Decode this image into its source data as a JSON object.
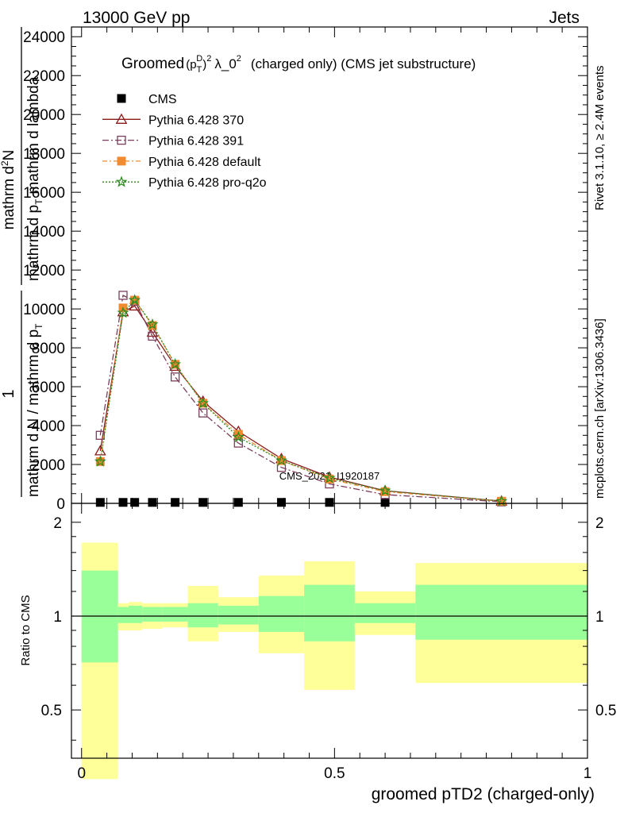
{
  "header": {
    "left": "13000 GeV pp",
    "right": "Jets"
  },
  "side_text": {
    "rivet": "Rivet 3.1.10, ≥ 2.4M events",
    "mcplots": "mcplots.cern.ch [arXiv:1306.3436]"
  },
  "watermark": "CMS_2021_I1920187",
  "chart_data": [
    {
      "type": "line",
      "title": {
        "prefix": "Groomed",
        "symbol": "(p",
        "sub": "T",
        "sup": "D",
        "close": ")",
        "exp": "2",
        "rest": "λ_0",
        "rest_exp": "2",
        "suffix": "(charged only) (CMS jet substructure)"
      },
      "ylabel": "1 / mathrm d N / mathrm d p_T mathrm d^2N / mathrm d p_T mathrm d lambda",
      "ylabel_parts": {
        "num": "1",
        "den": "mathrm d N / mathrm d p",
        "den_sub": "T",
        "num2": "mathrm d",
        "num2_sup": "2",
        "num2_rest": "N",
        "den2": "mathrm d p",
        "den2_sub": "T",
        "den2_rest": "mathrm d lambda"
      },
      "ylim": [
        0,
        24500
      ],
      "yticks": [
        0,
        2000,
        4000,
        6000,
        8000,
        10000,
        12000,
        14000,
        16000,
        18000,
        20000,
        22000,
        24000
      ],
      "ytick_labels": [
        "0",
        "2000",
        "4000",
        "6000",
        "8000",
        "10000",
        "12000",
        "14000",
        "16000",
        "18000",
        "20000",
        "22000",
        "24000"
      ],
      "xlim": [
        -0.02,
        1.0
      ],
      "legend": "top-left",
      "series": [
        {
          "name": "CMS",
          "color": "#000000",
          "marker": "square-filled",
          "dash": "",
          "x": [
            0.037,
            0.082,
            0.105,
            0.14,
            0.185,
            0.24,
            0.31,
            0.395,
            0.49,
            0.6
          ],
          "y": [
            50,
            50,
            50,
            50,
            50,
            50,
            50,
            50,
            50,
            50
          ]
        },
        {
          "name": "Pythia 6.428 370",
          "color": "#8b1a1a",
          "marker": "triangle-open",
          "dash": "",
          "x": [
            0.037,
            0.082,
            0.105,
            0.14,
            0.185,
            0.24,
            0.31,
            0.395,
            0.49,
            0.6,
            0.83
          ],
          "y": [
            2700,
            9850,
            10150,
            8800,
            7050,
            5250,
            3700,
            2300,
            1350,
            650,
            120
          ]
        },
        {
          "name": "Pythia 6.428 391",
          "color": "#7a3e5c",
          "marker": "square-open",
          "dash": "8,3,2,3",
          "x": [
            0.037,
            0.082,
            0.105,
            0.14,
            0.185,
            0.24,
            0.31,
            0.395,
            0.49,
            0.6,
            0.83
          ],
          "y": [
            3500,
            10700,
            10400,
            8600,
            6500,
            4650,
            3100,
            1850,
            1000,
            450,
            80
          ]
        },
        {
          "name": "Pythia 6.428 default",
          "color": "#f28b30",
          "marker": "square-filled",
          "dash": "6,3,2,3",
          "x": [
            0.037,
            0.082,
            0.105,
            0.14,
            0.185,
            0.24,
            0.31,
            0.395,
            0.49,
            0.6,
            0.83
          ],
          "y": [
            2150,
            10050,
            10450,
            9150,
            7150,
            5150,
            3550,
            2200,
            1250,
            600,
            110
          ]
        },
        {
          "name": "Pythia 6.428 pro-q2o",
          "color": "#2e8b1e",
          "marker": "star-open",
          "dash": "2,2",
          "x": [
            0.037,
            0.082,
            0.105,
            0.14,
            0.185,
            0.24,
            0.31,
            0.395,
            0.49,
            0.6,
            0.83
          ],
          "y": [
            2150,
            9800,
            10450,
            9200,
            7150,
            5150,
            3400,
            2200,
            1300,
            650,
            110
          ]
        }
      ]
    },
    {
      "type": "area",
      "ylabel": "Ratio to CMS",
      "xlabel": "groomed pTD2 (charged-only)",
      "xlim": [
        -0.02,
        1.0
      ],
      "xticks": [
        0,
        0.5,
        1
      ],
      "xtick_labels": [
        "0",
        "0.5",
        "1"
      ],
      "ylim": [
        0.35,
        2.3
      ],
      "yscale": "log",
      "yticks": [
        0.5,
        1,
        2
      ],
      "ytick_labels": [
        "0.5",
        "1",
        "2"
      ],
      "band_colors": {
        "inner": "#99ff99",
        "outer": "#ffff99"
      },
      "reference_line": 1,
      "bins": [
        {
          "x0": 0.0,
          "x1": 0.072,
          "inner": [
            0.71,
            1.4
          ],
          "outer": [
            0.3,
            1.72
          ]
        },
        {
          "x0": 0.072,
          "x1": 0.093,
          "inner": [
            0.95,
            1.07
          ],
          "outer": [
            0.9,
            1.1
          ]
        },
        {
          "x0": 0.093,
          "x1": 0.12,
          "inner": [
            0.95,
            1.08
          ],
          "outer": [
            0.9,
            1.11
          ]
        },
        {
          "x0": 0.12,
          "x1": 0.16,
          "inner": [
            0.96,
            1.07
          ],
          "outer": [
            0.91,
            1.1
          ]
        },
        {
          "x0": 0.16,
          "x1": 0.21,
          "inner": [
            0.96,
            1.07
          ],
          "outer": [
            0.92,
            1.1
          ]
        },
        {
          "x0": 0.21,
          "x1": 0.27,
          "inner": [
            0.92,
            1.1
          ],
          "outer": [
            0.83,
            1.25
          ]
        },
        {
          "x0": 0.27,
          "x1": 0.35,
          "inner": [
            0.94,
            1.08
          ],
          "outer": [
            0.89,
            1.15
          ]
        },
        {
          "x0": 0.35,
          "x1": 0.44,
          "inner": [
            0.89,
            1.16
          ],
          "outer": [
            0.76,
            1.35
          ]
        },
        {
          "x0": 0.44,
          "x1": 0.54,
          "inner": [
            0.83,
            1.26
          ],
          "outer": [
            0.58,
            1.5
          ]
        },
        {
          "x0": 0.54,
          "x1": 0.66,
          "inner": [
            0.95,
            1.1
          ],
          "outer": [
            0.87,
            1.2
          ]
        },
        {
          "x0": 0.66,
          "x1": 1.0,
          "inner": [
            0.84,
            1.26
          ],
          "outer": [
            0.61,
            1.48
          ]
        }
      ]
    }
  ]
}
